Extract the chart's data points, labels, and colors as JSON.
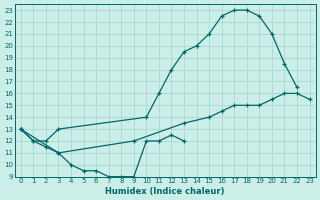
{
  "xlabel": "Humidex (Indice chaleur)",
  "bg_color": "#cceee8",
  "grid_color": "#aad8d2",
  "line_color": "#006868",
  "xlim": [
    -0.5,
    23.5
  ],
  "ylim": [
    9,
    23.5
  ],
  "xticks": [
    0,
    1,
    2,
    3,
    4,
    5,
    6,
    7,
    8,
    9,
    10,
    11,
    12,
    13,
    14,
    15,
    16,
    17,
    18,
    19,
    20,
    21,
    22,
    23
  ],
  "yticks": [
    9,
    10,
    11,
    12,
    13,
    14,
    15,
    16,
    17,
    18,
    19,
    20,
    21,
    22,
    23
  ],
  "line1_x": [
    0,
    1,
    2,
    3,
    10,
    11,
    12,
    13,
    14,
    15,
    16,
    17,
    18,
    19,
    20,
    21,
    22
  ],
  "line1_y": [
    13,
    12,
    12,
    13,
    14,
    16,
    18,
    19.5,
    20,
    21,
    22.5,
    23,
    23,
    22.5,
    21,
    18.5,
    16.5
  ],
  "line2_x": [
    0,
    1,
    2,
    3,
    4,
    5,
    6,
    7,
    8,
    9,
    10,
    11,
    12,
    13
  ],
  "line2_y": [
    13,
    12,
    11.5,
    11,
    10,
    9.5,
    9.5,
    9,
    9,
    9,
    12,
    12,
    12.5,
    12
  ],
  "line3_x": [
    0,
    3,
    9,
    13,
    15,
    16,
    17,
    18,
    19,
    20,
    21,
    22,
    23
  ],
  "line3_y": [
    13,
    11,
    12,
    13.5,
    14,
    14.5,
    15,
    15,
    15,
    15.5,
    16,
    16,
    15.5
  ]
}
